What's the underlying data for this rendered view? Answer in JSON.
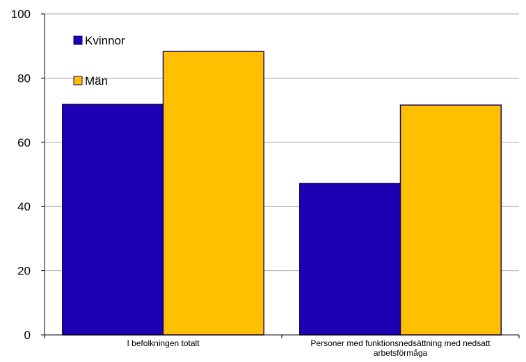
{
  "chart_data": {
    "type": "bar",
    "categories": [
      "I befolkningen totalt",
      "Personer med funktionsnedsättning med nedsatt arbetsförmåga"
    ],
    "series": [
      {
        "name": "Kvinnor",
        "values": [
          71.8,
          47.2
        ],
        "color": "#1e00b4"
      },
      {
        "name": "Män",
        "values": [
          88.3,
          71.6
        ],
        "color": "#ffc000"
      }
    ],
    "ylim": [
      0,
      100
    ],
    "yticks": [
      0,
      20,
      40,
      60,
      80,
      100
    ],
    "grid": true,
    "legend_placement": "top-left",
    "bar_border_color": "#1a0066",
    "grid_color": "#a6a6a6"
  }
}
